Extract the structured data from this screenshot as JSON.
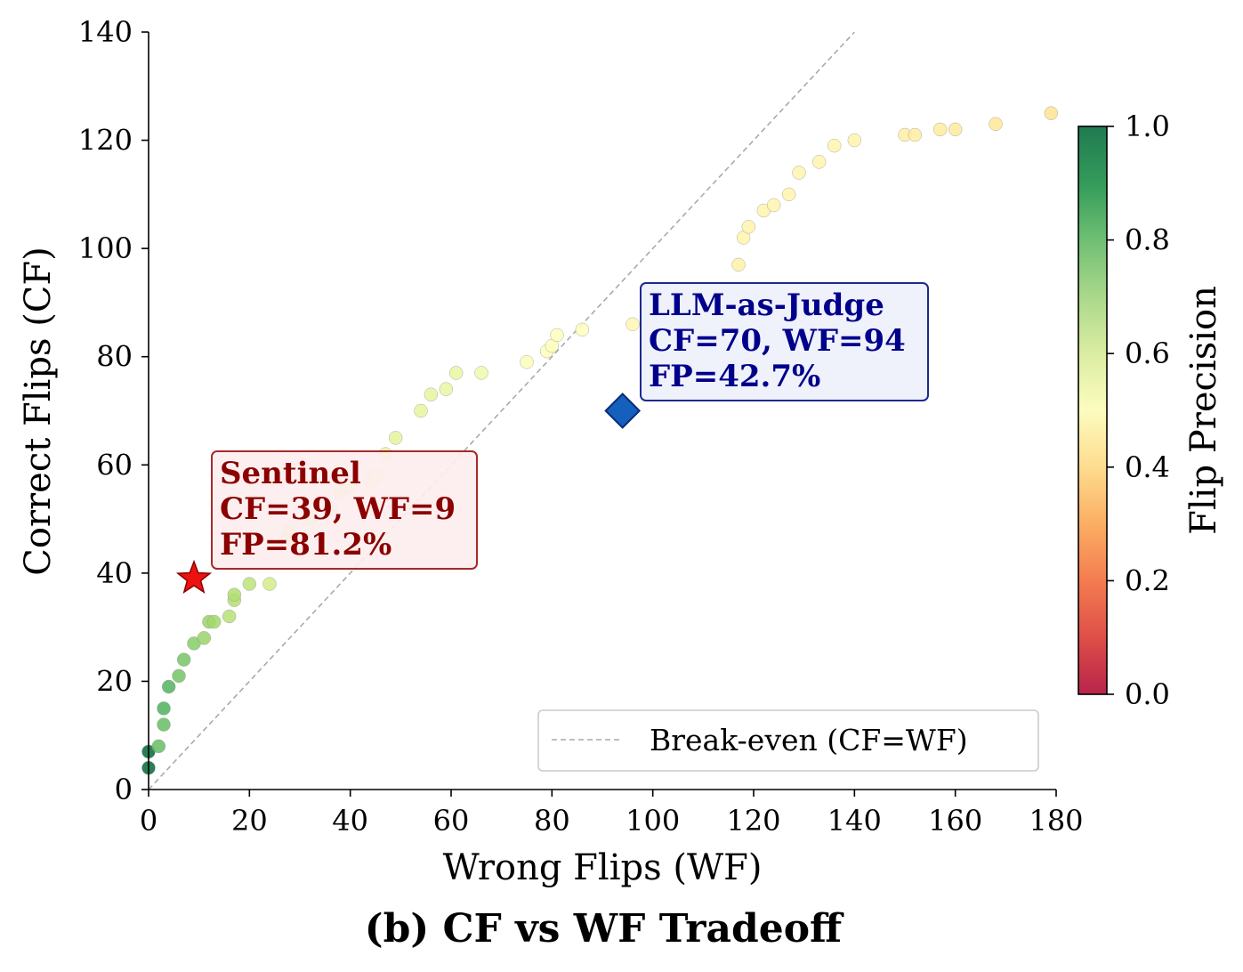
{
  "chart_data": {
    "type": "scatter",
    "title": "(b) CF vs WF Tradeoff",
    "xlabel": "Wrong Flips (WF)",
    "ylabel": "Correct Flips (CF)",
    "xlim": [
      0,
      180
    ],
    "ylim": [
      0,
      140
    ],
    "xticks": [
      "0",
      "20",
      "40",
      "60",
      "80",
      "100",
      "120",
      "140",
      "160",
      "180"
    ],
    "yticks": [
      "0",
      "20",
      "40",
      "60",
      "80",
      "100",
      "120",
      "140"
    ],
    "grid": false,
    "colorbar": {
      "label": "Flip Precision",
      "colormap": "RdYlGn",
      "range": [
        0,
        1
      ],
      "ticks": [
        "0.0",
        "0.2",
        "0.4",
        "0.6",
        "0.8",
        "1.0"
      ]
    },
    "series": [
      {
        "points": [
          {
            "x": 0,
            "y": 4
          },
          {
            "x": 0,
            "y": 7
          },
          {
            "x": 2,
            "y": 8
          },
          {
            "x": 3,
            "y": 12
          },
          {
            "x": 3,
            "y": 15
          },
          {
            "x": 4,
            "y": 19
          },
          {
            "x": 6,
            "y": 21
          },
          {
            "x": 7,
            "y": 24
          },
          {
            "x": 9,
            "y": 27
          },
          {
            "x": 11,
            "y": 28
          },
          {
            "x": 12,
            "y": 31
          },
          {
            "x": 13,
            "y": 31
          },
          {
            "x": 16,
            "y": 32
          },
          {
            "x": 17,
            "y": 35
          },
          {
            "x": 17,
            "y": 36
          },
          {
            "x": 20,
            "y": 38
          },
          {
            "x": 24,
            "y": 38
          },
          {
            "x": 27,
            "y": 46
          },
          {
            "x": 28,
            "y": 48
          },
          {
            "x": 32,
            "y": 50
          },
          {
            "x": 36,
            "y": 52
          },
          {
            "x": 38,
            "y": 55
          },
          {
            "x": 40,
            "y": 56
          },
          {
            "x": 44,
            "y": 57
          },
          {
            "x": 45,
            "y": 58
          },
          {
            "x": 47,
            "y": 62
          },
          {
            "x": 49,
            "y": 65
          },
          {
            "x": 54,
            "y": 70
          },
          {
            "x": 56,
            "y": 73
          },
          {
            "x": 59,
            "y": 74
          },
          {
            "x": 61,
            "y": 77
          },
          {
            "x": 66,
            "y": 77
          },
          {
            "x": 75,
            "y": 79
          },
          {
            "x": 79,
            "y": 81
          },
          {
            "x": 80,
            "y": 82
          },
          {
            "x": 81,
            "y": 84
          },
          {
            "x": 86,
            "y": 85
          },
          {
            "x": 96,
            "y": 86
          },
          {
            "x": 117,
            "y": 97
          },
          {
            "x": 118,
            "y": 102
          },
          {
            "x": 119,
            "y": 104
          },
          {
            "x": 122,
            "y": 107
          },
          {
            "x": 124,
            "y": 108
          },
          {
            "x": 127,
            "y": 110
          },
          {
            "x": 129,
            "y": 114
          },
          {
            "x": 133,
            "y": 116
          },
          {
            "x": 136,
            "y": 119
          },
          {
            "x": 140,
            "y": 120
          },
          {
            "x": 150,
            "y": 121
          },
          {
            "x": 152,
            "y": 121
          },
          {
            "x": 157,
            "y": 122
          },
          {
            "x": 160,
            "y": 122
          },
          {
            "x": 168,
            "y": 123
          },
          {
            "x": 179,
            "y": 125
          }
        ]
      }
    ],
    "break_even_line": {
      "x": [
        0,
        140
      ],
      "y": [
        0,
        140
      ],
      "color": "#aaaaaa"
    },
    "legend": {
      "label": "Break-even (CF=WF)",
      "location": "lower-right"
    },
    "highlights": [
      {
        "name": "Sentinel",
        "x": 9,
        "y": 39,
        "marker": "star",
        "color": "#ee1111",
        "text_color": "#8b0000",
        "box_fill": "#fdeeee",
        "box_border": "#a52a2a",
        "lines": [
          "Sentinel",
          "CF=39, WF=9",
          "FP=81.2%"
        ]
      },
      {
        "name": "LLM-as-Judge",
        "x": 94,
        "y": 70,
        "marker": "diamond",
        "color": "#1560bd",
        "text_color": "#00008b",
        "box_fill": "#eef0fb",
        "box_border": "#1c2a8c",
        "lines": [
          "LLM-as-Judge",
          "CF=70, WF=94",
          "FP=42.7%"
        ]
      }
    ]
  }
}
